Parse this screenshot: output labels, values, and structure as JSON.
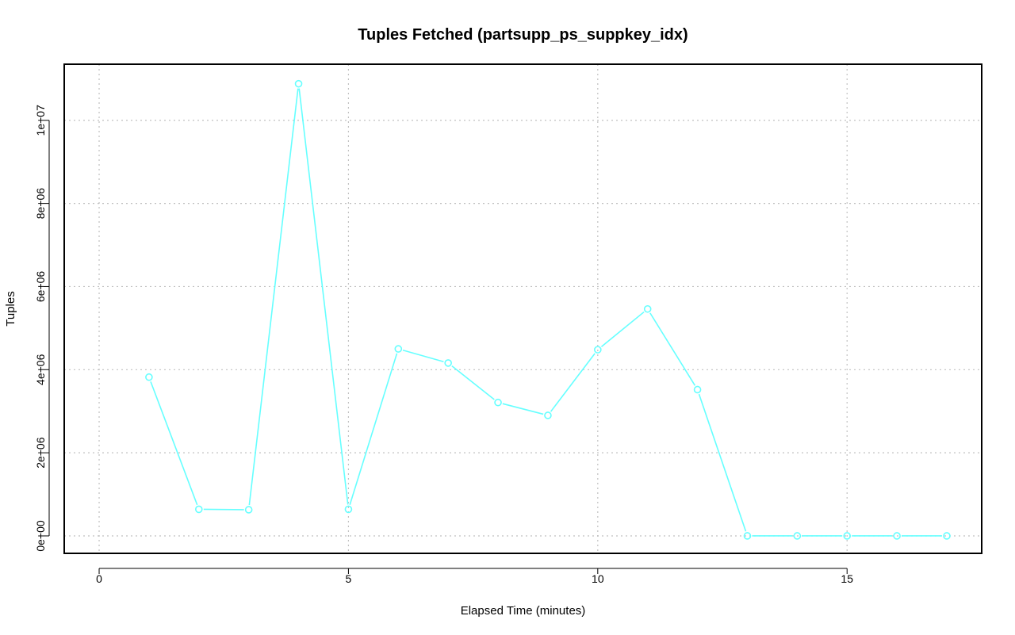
{
  "chart_data": {
    "type": "line",
    "title": "Tuples Fetched (partsupp_ps_suppkey_idx)",
    "xlabel": "Elapsed Time (minutes)",
    "ylabel": "Tuples",
    "xlim": [
      -0.7,
      17.7
    ],
    "ylim": [
      -420000,
      11350000
    ],
    "x_ticks": [
      0,
      5,
      10,
      15
    ],
    "x_tick_labels": [
      "0",
      "5",
      "10",
      "15"
    ],
    "y_ticks": [
      0,
      2000000,
      4000000,
      6000000,
      8000000,
      10000000
    ],
    "y_tick_labels": [
      "0e+00",
      "2e+06",
      "4e+06",
      "6e+06",
      "8e+06",
      "1e+07"
    ],
    "grid": true,
    "series": [
      {
        "color": "#66ffff",
        "marker": "open-circle",
        "x": [
          1,
          2,
          3,
          4,
          5,
          6,
          7,
          8,
          9,
          10,
          11,
          12,
          13,
          14,
          15,
          16,
          17
        ],
        "values": [
          3820000,
          640000,
          630000,
          10880000,
          640000,
          4500000,
          4160000,
          3210000,
          2900000,
          4480000,
          5460000,
          3520000,
          0,
          0,
          0,
          0,
          0
        ]
      }
    ]
  }
}
